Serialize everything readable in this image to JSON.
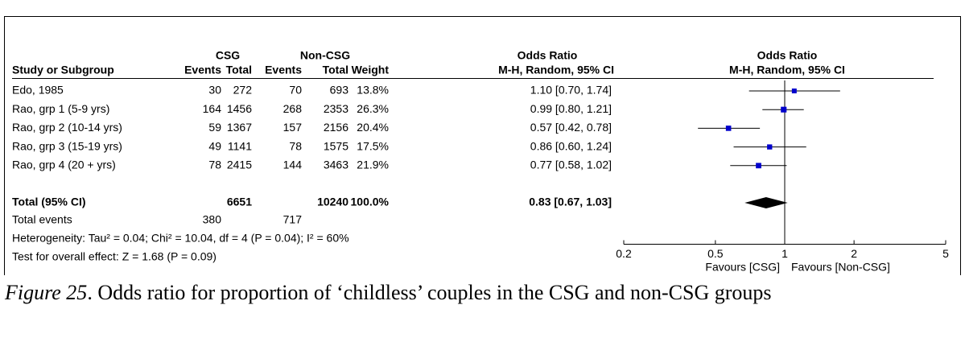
{
  "chart_data": {
    "type": "forest",
    "group_headers": {
      "experimental": "CSG",
      "control": "Non-CSG",
      "or_table": "Odds Ratio",
      "or_plot": "Odds Ratio"
    },
    "column_headers": {
      "study": "Study or Subgroup",
      "events1": "Events",
      "total1": "Total",
      "events2": "Events",
      "total2": "Total",
      "weight": "Weight",
      "ci": "M-H, Random, 95% CI",
      "plot_ci": "M-H, Random, 95% CI"
    },
    "studies": [
      {
        "name": "Edo, 1985",
        "events1": 30,
        "total1": 272,
        "events2": 70,
        "total2": 693,
        "weight": 13.8,
        "weight_label": "13.8%",
        "or": 1.1,
        "ci_low": 0.7,
        "ci_high": 1.74,
        "ci_label": "1.10 [0.70, 1.74]"
      },
      {
        "name": "Rao, grp 1 (5-9 yrs)",
        "events1": 164,
        "total1": 1456,
        "events2": 268,
        "total2": 2353,
        "weight": 26.3,
        "weight_label": "26.3%",
        "or": 0.99,
        "ci_low": 0.8,
        "ci_high": 1.21,
        "ci_label": "0.99 [0.80, 1.21]"
      },
      {
        "name": "Rao, grp 2 (10-14 yrs)",
        "events1": 59,
        "total1": 1367,
        "events2": 157,
        "total2": 2156,
        "weight": 20.4,
        "weight_label": "20.4%",
        "or": 0.57,
        "ci_low": 0.42,
        "ci_high": 0.78,
        "ci_label": "0.57 [0.42, 0.78]"
      },
      {
        "name": "Rao, grp 3 (15-19 yrs)",
        "events1": 49,
        "total1": 1141,
        "events2": 78,
        "total2": 1575,
        "weight": 17.5,
        "weight_label": "17.5%",
        "or": 0.86,
        "ci_low": 0.6,
        "ci_high": 1.24,
        "ci_label": "0.86 [0.60, 1.24]"
      },
      {
        "name": "Rao, grp 4 (20 + yrs)",
        "events1": 78,
        "total1": 2415,
        "events2": 144,
        "total2": 3463,
        "weight": 21.9,
        "weight_label": "21.9%",
        "or": 0.77,
        "ci_low": 0.58,
        "ci_high": 1.02,
        "ci_label": "0.77 [0.58, 1.02]"
      }
    ],
    "total": {
      "name": "Total (95% CI)",
      "total1": 6651,
      "total2": 10240,
      "weight": 100,
      "weight_label": "100.0%",
      "or": 0.83,
      "ci_low": 0.67,
      "ci_high": 1.03,
      "ci_label": "0.83 [0.67, 1.03]"
    },
    "total_events": {
      "name": "Total events",
      "events1": 380,
      "events2": 717
    },
    "heterogeneity": "Heterogeneity: Tau² = 0.04; Chi² = 10.04, df = 4 (P = 0.04); I² = 60%",
    "overall_effect": "Test for overall effect: Z = 1.68 (P = 0.09)",
    "xscale": "log",
    "xlim": [
      0.2,
      5
    ],
    "xticks": [
      0.2,
      0.5,
      1,
      2,
      5
    ],
    "favours_left": "Favours [CSG]",
    "favours_right": "Favours [Non-CSG]",
    "marker_color": "#0000cc",
    "diamond_color": "#000000"
  },
  "caption": {
    "label": "Figure 25",
    "text": ". Odds ratio for proportion of ‘childless’ couples in the CSG and non-CSG groups"
  }
}
